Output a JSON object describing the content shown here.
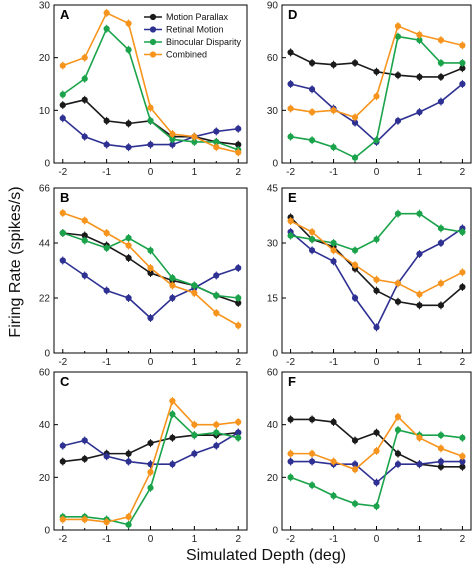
{
  "figure": {
    "xlabel": "Simulated Depth (deg)",
    "ylabel": "Firing Rate (spikes/s)"
  },
  "legend": [
    {
      "name": "Motion Parallax",
      "color": "#1a1a1a"
    },
    {
      "name": "Retinal Motion",
      "color": "#2e3192"
    },
    {
      "name": "Binocular Disparity",
      "color": "#1aa34a"
    },
    {
      "name": "Combined",
      "color": "#f7941d"
    }
  ],
  "chart_data": [
    {
      "type": "line",
      "panel": "A",
      "x": [
        -2,
        -1.5,
        -1,
        -0.5,
        0,
        0.5,
        1,
        1.5,
        2
      ],
      "xticks": [
        "-2",
        "-1",
        "0",
        "1",
        "2"
      ],
      "xlim": [
        -2.2,
        2.2
      ],
      "ylim": [
        0,
        30
      ],
      "yticks": [
        "0",
        "10",
        "20",
        "30"
      ],
      "series": [
        {
          "name": "Motion Parallax",
          "values": [
            11,
            12,
            8,
            7.5,
            8,
            5,
            5,
            4,
            3.5
          ]
        },
        {
          "name": "Retinal Motion",
          "values": [
            8.5,
            5,
            3.5,
            3,
            3.5,
            3.5,
            5,
            6,
            6.5
          ]
        },
        {
          "name": "Binocular Disparity",
          "values": [
            13,
            16,
            25.5,
            21.5,
            8,
            4.5,
            4,
            4,
            2.5
          ]
        },
        {
          "name": "Combined",
          "values": [
            18.5,
            20,
            28.5,
            26.5,
            10.5,
            5.5,
            5,
            3,
            2
          ]
        }
      ]
    },
    {
      "type": "line",
      "panel": "D",
      "x": [
        -2,
        -1.5,
        -1,
        -0.5,
        0,
        0.5,
        1,
        1.5,
        2
      ],
      "xticks": [
        "-2",
        "-1",
        "0",
        "1",
        "2"
      ],
      "xlim": [
        -2.2,
        2.2
      ],
      "ylim": [
        0,
        90
      ],
      "yticks": [
        "0",
        "30",
        "60",
        "90"
      ],
      "series": [
        {
          "name": "Motion Parallax",
          "values": [
            63,
            57,
            56,
            57,
            52,
            50,
            49,
            49,
            54
          ]
        },
        {
          "name": "Retinal Motion",
          "values": [
            45,
            42,
            31,
            23,
            12,
            24,
            29,
            35,
            45
          ]
        },
        {
          "name": "Binocular Disparity",
          "values": [
            15,
            13,
            9,
            3,
            13,
            72,
            70,
            57,
            57
          ]
        },
        {
          "name": "Combined",
          "values": [
            31,
            29,
            30,
            26,
            38,
            78,
            73,
            70,
            67
          ]
        }
      ]
    },
    {
      "type": "line",
      "panel": "B",
      "x": [
        -2,
        -1.5,
        -1,
        -0.5,
        0,
        0.5,
        1,
        1.5,
        2
      ],
      "xticks": [
        "-2",
        "-1",
        "0",
        "1",
        "2"
      ],
      "xlim": [
        -2.2,
        2.2
      ],
      "ylim": [
        0,
        66
      ],
      "yticks": [
        "0",
        "22",
        "44",
        "66"
      ],
      "series": [
        {
          "name": "Motion Parallax",
          "values": [
            48,
            47,
            43,
            38,
            32,
            29,
            27,
            23,
            20
          ]
        },
        {
          "name": "Retinal Motion",
          "values": [
            37,
            31,
            25,
            22,
            14,
            22,
            26,
            31,
            34
          ]
        },
        {
          "name": "Binocular Disparity",
          "values": [
            48,
            45,
            42,
            46,
            41,
            30,
            27,
            23,
            22
          ]
        },
        {
          "name": "Combined",
          "values": [
            56,
            53,
            48,
            43,
            34,
            27,
            24,
            16,
            11
          ]
        }
      ]
    },
    {
      "type": "line",
      "panel": "E",
      "x": [
        -2,
        -1.5,
        -1,
        -0.5,
        0,
        0.5,
        1,
        1.5,
        2
      ],
      "xticks": [
        "-2",
        "-1",
        "0",
        "1",
        "2"
      ],
      "xlim": [
        -2.2,
        2.2
      ],
      "ylim": [
        0,
        45
      ],
      "yticks": [
        "0",
        "15",
        "30",
        "45"
      ],
      "series": [
        {
          "name": "Motion Parallax",
          "values": [
            37,
            31,
            29,
            23,
            17,
            14,
            13,
            13,
            18
          ]
        },
        {
          "name": "Retinal Motion",
          "values": [
            33,
            28,
            25,
            15,
            7,
            19,
            27,
            30,
            34
          ]
        },
        {
          "name": "Binocular Disparity",
          "values": [
            32,
            31,
            30,
            28,
            31,
            38,
            38,
            34,
            33
          ]
        },
        {
          "name": "Combined",
          "values": [
            36,
            33,
            28,
            24,
            20,
            19,
            16,
            19,
            22
          ]
        }
      ]
    },
    {
      "type": "line",
      "panel": "C",
      "x": [
        -2,
        -1.5,
        -1,
        -0.5,
        0,
        0.5,
        1,
        1.5,
        2
      ],
      "xticks": [
        "-2",
        "-1",
        "0",
        "1",
        "2"
      ],
      "xlim": [
        -2.2,
        2.2
      ],
      "ylim": [
        0,
        60
      ],
      "yticks": [
        "0",
        "20",
        "40",
        "60"
      ],
      "series": [
        {
          "name": "Motion Parallax",
          "values": [
            26,
            27,
            29,
            29,
            33,
            35,
            36,
            36,
            37
          ]
        },
        {
          "name": "Retinal Motion",
          "values": [
            32,
            34,
            28,
            26,
            25,
            25,
            29,
            32,
            37
          ]
        },
        {
          "name": "Binocular Disparity",
          "values": [
            5,
            5,
            4,
            2,
            16,
            44,
            36,
            37,
            35
          ]
        },
        {
          "name": "Combined",
          "values": [
            4,
            4,
            3,
            5,
            22,
            49,
            40,
            40,
            41
          ]
        }
      ]
    },
    {
      "type": "line",
      "panel": "F",
      "x": [
        -2,
        -1.5,
        -1,
        -0.5,
        0,
        0.5,
        1,
        1.5,
        2
      ],
      "xticks": [
        "-2",
        "-1",
        "0",
        "1",
        "2"
      ],
      "xlim": [
        -2.2,
        2.2
      ],
      "ylim": [
        0,
        60
      ],
      "yticks": [
        "0",
        "20",
        "40",
        "60"
      ],
      "series": [
        {
          "name": "Motion Parallax",
          "values": [
            42,
            42,
            41,
            34,
            37,
            29,
            25,
            24,
            24
          ]
        },
        {
          "name": "Retinal Motion",
          "values": [
            26,
            26,
            25,
            25,
            18,
            25,
            25,
            26,
            26
          ]
        },
        {
          "name": "Binocular Disparity",
          "values": [
            20,
            17,
            13,
            10,
            9,
            38,
            36,
            36,
            35
          ]
        },
        {
          "name": "Combined",
          "values": [
            29,
            29,
            26,
            23,
            30,
            43,
            35,
            31,
            28
          ]
        }
      ]
    }
  ]
}
